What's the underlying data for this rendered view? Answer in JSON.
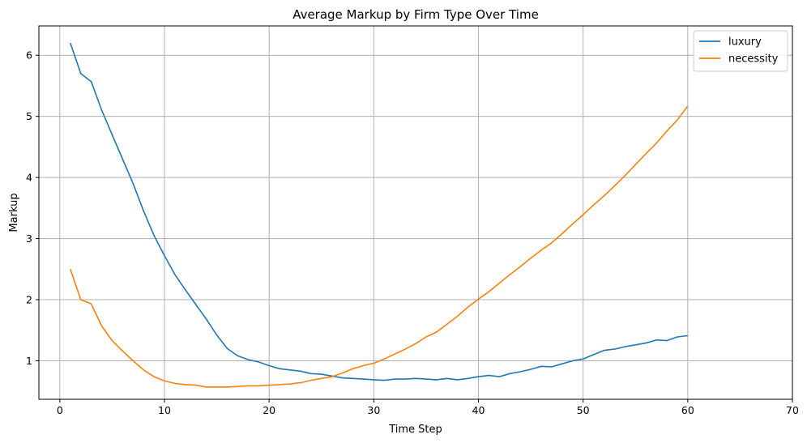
{
  "chart_data": {
    "type": "line",
    "title": "Average Markup by Firm Type Over Time",
    "xlabel": "Time Step",
    "ylabel": "Markup",
    "xlim": [
      -2,
      70
    ],
    "ylim": [
      0.37,
      6.48
    ],
    "xticks": [
      0,
      10,
      20,
      30,
      40,
      50,
      60,
      70
    ],
    "yticks": [
      1,
      2,
      3,
      4,
      5,
      6
    ],
    "grid": true,
    "legend_position": "top-right",
    "x": [
      1,
      2,
      3,
      4,
      5,
      6,
      7,
      8,
      9,
      10,
      11,
      12,
      13,
      14,
      15,
      16,
      17,
      18,
      19,
      20,
      21,
      22,
      23,
      24,
      25,
      26,
      27,
      28,
      29,
      30,
      31,
      32,
      33,
      34,
      35,
      36,
      37,
      38,
      39,
      40,
      41,
      42,
      43,
      44,
      45,
      46,
      47,
      48,
      49,
      50,
      51,
      52,
      53,
      54,
      55,
      56,
      57,
      58,
      59,
      60
    ],
    "series": [
      {
        "name": "luxury",
        "color": "#1f77b4",
        "values": [
          6.2,
          5.7,
          5.57,
          5.1,
          4.7,
          4.3,
          3.9,
          3.45,
          3.05,
          2.72,
          2.41,
          2.16,
          1.92,
          1.68,
          1.42,
          1.2,
          1.08,
          1.02,
          0.98,
          0.92,
          0.87,
          0.85,
          0.83,
          0.79,
          0.78,
          0.75,
          0.72,
          0.71,
          0.7,
          0.69,
          0.68,
          0.7,
          0.7,
          0.71,
          0.7,
          0.69,
          0.71,
          0.69,
          0.71,
          0.74,
          0.76,
          0.74,
          0.79,
          0.82,
          0.86,
          0.91,
          0.9,
          0.95,
          1.0,
          1.03,
          1.1,
          1.17,
          1.19,
          1.23,
          1.26,
          1.29,
          1.34,
          1.33,
          1.39,
          1.41
        ]
      },
      {
        "name": "necessity",
        "color": "#ff7f0e",
        "values": [
          2.5,
          2.0,
          1.93,
          1.57,
          1.33,
          1.16,
          1.0,
          0.85,
          0.74,
          0.67,
          0.63,
          0.61,
          0.6,
          0.57,
          0.57,
          0.57,
          0.58,
          0.59,
          0.59,
          0.6,
          0.61,
          0.62,
          0.64,
          0.68,
          0.71,
          0.74,
          0.8,
          0.87,
          0.92,
          0.96,
          1.03,
          1.11,
          1.19,
          1.28,
          1.39,
          1.47,
          1.6,
          1.73,
          1.88,
          2.01,
          2.13,
          2.27,
          2.41,
          2.54,
          2.68,
          2.81,
          2.93,
          3.08,
          3.24,
          3.39,
          3.55,
          3.7,
          3.86,
          4.03,
          4.21,
          4.39,
          4.56,
          4.76,
          4.94,
          5.17
        ]
      }
    ]
  }
}
